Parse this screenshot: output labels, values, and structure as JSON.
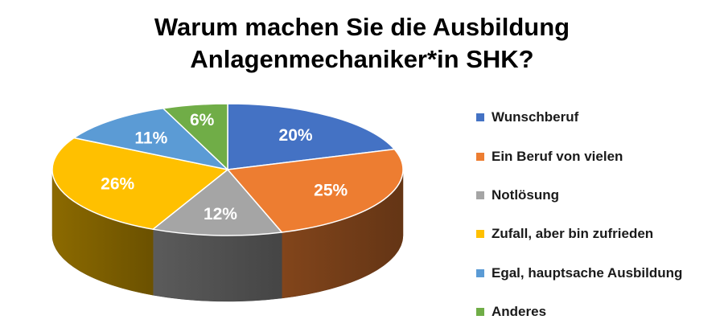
{
  "chart_data": {
    "type": "pie",
    "title_lines": [
      "Warum machen Sie die Ausbildung",
      "Anlagenmechaniker*in SHK?"
    ],
    "categories": [
      "Wunschberuf",
      "Ein Beruf von vielen",
      "Notlösung",
      "Zufall, aber bin zufrieden",
      "Egal, hauptsache Ausbildung",
      "Anderes"
    ],
    "values": [
      20,
      25,
      12,
      26,
      11,
      6
    ],
    "labels": [
      "20%",
      "25%",
      "12%",
      "26%",
      "11%",
      "6%"
    ],
    "colors": [
      "#4472C4",
      "#ED7D31",
      "#A5A5A5",
      "#FFC000",
      "#5B9BD5",
      "#70AD47"
    ],
    "legend_position": "right",
    "style": "3d"
  }
}
